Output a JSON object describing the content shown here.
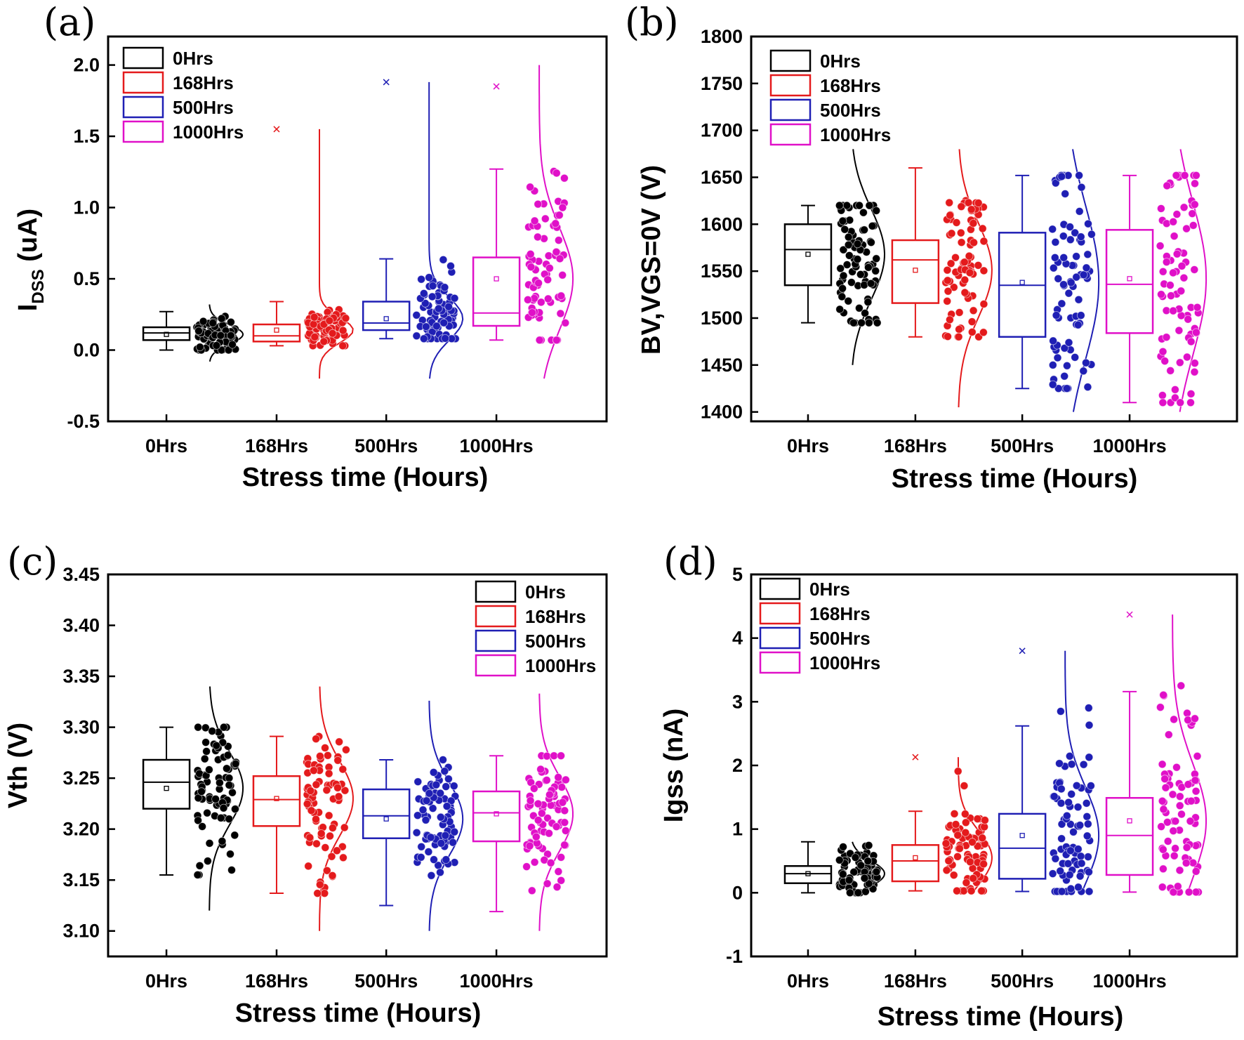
{
  "chart_data": [
    {
      "panel": "(a)",
      "type": "box",
      "xlabel": "Stress time (Hours)",
      "ylabel_main": "I",
      "ylabel_sub": "DSS",
      "ylabel_tail": " (uA)",
      "ylim": [
        -0.5,
        2.2
      ],
      "yticks": [
        -0.5,
        0.0,
        0.5,
        1.0,
        1.5,
        2.0
      ],
      "ytick_labels": [
        "-0.5",
        "0.0",
        "0.5",
        "1.0",
        "1.5",
        "2.0"
      ],
      "categories": [
        "0Hrs",
        "168Hrs",
        "500Hrs",
        "1000Hrs"
      ],
      "legend": [
        "0Hrs",
        "168Hrs",
        "500Hrs",
        "1000Hrs"
      ],
      "legend_position": "top-left",
      "series": [
        {
          "name": "0Hrs",
          "color": "#000000",
          "whisker_low": 0.0,
          "q1": 0.07,
          "median": 0.12,
          "q3": 0.16,
          "whisker_high": 0.27,
          "mean": 0.11,
          "max_marker": null,
          "dist_low": -0.08,
          "dist_high": 0.32
        },
        {
          "name": "168Hrs",
          "color": "#e41a1c",
          "whisker_low": 0.03,
          "q1": 0.06,
          "median": 0.1,
          "q3": 0.18,
          "whisker_high": 0.34,
          "mean": 0.14,
          "max_marker": 1.55,
          "dist_low": -0.2,
          "dist_high": 1.55
        },
        {
          "name": "500Hrs",
          "color": "#1f1fb4",
          "whisker_low": 0.08,
          "q1": 0.14,
          "median": 0.19,
          "q3": 0.34,
          "whisker_high": 0.64,
          "mean": 0.22,
          "max_marker": 1.88,
          "dist_low": -0.2,
          "dist_high": 1.88
        },
        {
          "name": "1000Hrs",
          "color": "#e010c8",
          "whisker_low": 0.07,
          "q1": 0.17,
          "median": 0.26,
          "q3": 0.65,
          "whisker_high": 1.27,
          "mean": 0.5,
          "max_marker": 1.85,
          "dist_low": -0.2,
          "dist_high": 2.0
        }
      ]
    },
    {
      "panel": "(b)",
      "type": "box",
      "xlabel": "Stress time (Hours)",
      "ylabel": "BV,VGS=0V (V)",
      "ylim": [
        1390,
        1800
      ],
      "yticks": [
        1400,
        1450,
        1500,
        1550,
        1600,
        1650,
        1700,
        1750,
        1800
      ],
      "ytick_labels": [
        "1400",
        "1450",
        "1500",
        "1550",
        "1600",
        "1650",
        "1700",
        "1750",
        "1800"
      ],
      "categories": [
        "0Hrs",
        "168Hrs",
        "500Hrs",
        "1000Hrs"
      ],
      "legend": [
        "0Hrs",
        "168Hrs",
        "500Hrs",
        "1000Hrs"
      ],
      "legend_position": "top-left",
      "series": [
        {
          "name": "0Hrs",
          "color": "#000000",
          "whisker_low": 1495,
          "q1": 1535,
          "median": 1573,
          "q3": 1600,
          "whisker_high": 1620,
          "mean": 1568,
          "max_marker": null,
          "dist_low": 1450,
          "dist_high": 1680
        },
        {
          "name": "168Hrs",
          "color": "#e41a1c",
          "whisker_low": 1480,
          "q1": 1516,
          "median": 1562,
          "q3": 1583,
          "whisker_high": 1660,
          "mean": 1551,
          "max_marker": null,
          "dist_low": 1405,
          "dist_high": 1680
        },
        {
          "name": "500Hrs",
          "color": "#1f1fb4",
          "whisker_low": 1425,
          "q1": 1480,
          "median": 1535,
          "q3": 1591,
          "whisker_high": 1652,
          "mean": 1538,
          "max_marker": null,
          "dist_low": 1400,
          "dist_high": 1680
        },
        {
          "name": "1000Hrs",
          "color": "#e010c8",
          "whisker_low": 1410,
          "q1": 1484,
          "median": 1536,
          "q3": 1594,
          "whisker_high": 1652,
          "mean": 1542,
          "max_marker": null,
          "dist_low": 1400,
          "dist_high": 1680
        }
      ]
    },
    {
      "panel": "(c)",
      "type": "box",
      "xlabel": "Stress time (Hours)",
      "ylabel": "Vth (V)",
      "ylim": [
        3.075,
        3.45
      ],
      "yticks": [
        3.1,
        3.15,
        3.2,
        3.25,
        3.3,
        3.35,
        3.4,
        3.45
      ],
      "ytick_labels": [
        "3.10",
        "3.15",
        "3.20",
        "3.25",
        "3.30",
        "3.35",
        "3.40",
        "3.45"
      ],
      "categories": [
        "0Hrs",
        "168Hrs",
        "500Hrs",
        "1000Hrs"
      ],
      "legend": [
        "0Hrs",
        "168Hrs",
        "500Hrs",
        "1000Hrs"
      ],
      "legend_position": "top-right",
      "series": [
        {
          "name": "0Hrs",
          "color": "#000000",
          "whisker_low": 3.155,
          "q1": 3.22,
          "median": 3.246,
          "q3": 3.268,
          "whisker_high": 3.3,
          "mean": 3.24,
          "max_marker": null,
          "dist_low": 3.12,
          "dist_high": 3.34
        },
        {
          "name": "168Hrs",
          "color": "#e41a1c",
          "whisker_low": 3.137,
          "q1": 3.203,
          "median": 3.229,
          "q3": 3.252,
          "whisker_high": 3.291,
          "mean": 3.23,
          "max_marker": null,
          "dist_low": 3.1,
          "dist_high": 3.34
        },
        {
          "name": "500Hrs",
          "color": "#1f1fb4",
          "whisker_low": 3.125,
          "q1": 3.191,
          "median": 3.213,
          "q3": 3.239,
          "whisker_high": 3.268,
          "mean": 3.21,
          "max_marker": null,
          "dist_low": 3.1,
          "dist_high": 3.326
        },
        {
          "name": "1000Hrs",
          "color": "#e010c8",
          "whisker_low": 3.119,
          "q1": 3.188,
          "median": 3.216,
          "q3": 3.237,
          "whisker_high": 3.272,
          "mean": 3.215,
          "max_marker": null,
          "dist_low": 3.1,
          "dist_high": 3.333
        }
      ]
    },
    {
      "panel": "(d)",
      "type": "box",
      "xlabel": "Stress time (Hours)",
      "ylabel": "Igss (nA)",
      "ylim": [
        -1.0,
        5.0
      ],
      "yticks": [
        -1,
        0,
        1,
        2,
        3,
        4,
        5
      ],
      "ytick_labels": [
        "-1",
        "0",
        "1",
        "2",
        "3",
        "4",
        "5"
      ],
      "categories": [
        "0Hrs",
        "168Hrs",
        "500Hrs",
        "1000Hrs"
      ],
      "legend": [
        "0Hrs",
        "168Hrs",
        "500Hrs",
        "1000Hrs"
      ],
      "legend_position": "top-left",
      "series": [
        {
          "name": "0Hrs",
          "color": "#000000",
          "whisker_low": 0.0,
          "q1": 0.15,
          "median": 0.3,
          "q3": 0.42,
          "whisker_high": 0.8,
          "mean": 0.3,
          "max_marker": null,
          "dist_low": 0.0,
          "dist_high": 0.8
        },
        {
          "name": "168Hrs",
          "color": "#e41a1c",
          "whisker_low": 0.03,
          "q1": 0.18,
          "median": 0.5,
          "q3": 0.75,
          "whisker_high": 1.28,
          "mean": 0.55,
          "max_marker": 2.13,
          "dist_low": 0.0,
          "dist_high": 2.13
        },
        {
          "name": "500Hrs",
          "color": "#1f1fb4",
          "whisker_low": 0.02,
          "q1": 0.22,
          "median": 0.7,
          "q3": 1.24,
          "whisker_high": 2.62,
          "mean": 0.9,
          "max_marker": 3.8,
          "dist_low": 0.0,
          "dist_high": 3.8
        },
        {
          "name": "1000Hrs",
          "color": "#e010c8",
          "whisker_low": 0.01,
          "q1": 0.28,
          "median": 0.9,
          "q3": 1.49,
          "whisker_high": 3.16,
          "mean": 1.13,
          "max_marker": 4.37,
          "dist_low": 0.0,
          "dist_high": 4.37
        }
      ]
    }
  ]
}
